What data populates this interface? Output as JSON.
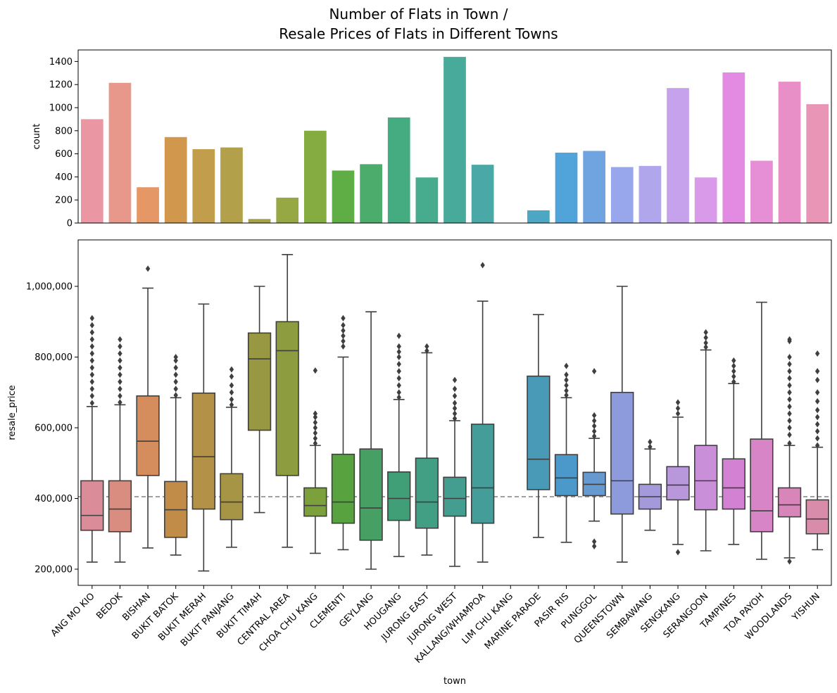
{
  "chart_data": [
    {
      "type": "bar",
      "title_lines": [
        "Number of Flats in Town /",
        "Resale Prices of Flats in Different Towns"
      ],
      "categories": [
        "ANG MO KIO",
        "BEDOK",
        "BISHAN",
        "BUKIT BATOK",
        "BUKIT MERAH",
        "BUKIT PANJANG",
        "BUKIT TIMAH",
        "CENTRAL AREA",
        "CHOA CHU KANG",
        "CLEMENTI",
        "GEYLANG",
        "HOUGANG",
        "JURONG EAST",
        "JURONG WEST",
        "KALLANG/WHAMPOA",
        "LIM CHU KANG",
        "MARINE PARADE",
        "PASIR RIS",
        "PUNGGOL",
        "QUEENSTOWN",
        "SEMBAWANG",
        "SENGKANG",
        "SERANGOON",
        "TAMPINES",
        "TOA PAYOH",
        "WOODLANDS",
        "YISHUN"
      ],
      "values": [
        900,
        1215,
        310,
        745,
        640,
        655,
        35,
        220,
        800,
        455,
        510,
        915,
        395,
        1440,
        505,
        0,
        110,
        610,
        625,
        485,
        495,
        1170,
        395,
        1305,
        540,
        1225,
        1030
      ],
      "colors": [
        "#ea96a3",
        "#e8988a",
        "#e59865",
        "#d0974d",
        "#c19d4c",
        "#b3a04a",
        "#a5a347",
        "#96a843",
        "#84ac41",
        "#5fae45",
        "#4bac6b",
        "#45ab80",
        "#47ab8e",
        "#48aa9a",
        "#4aa9a6",
        "#4ba8b3",
        "#4ea6c5",
        "#50a4d9",
        "#6fa4e1",
        "#98a6eb",
        "#b0a6ec",
        "#c6a2ec",
        "#d99ae9",
        "#e38be2",
        "#e78fd6",
        "#e88fc8",
        "#e996b6"
      ],
      "xlabel": "",
      "ylabel": "count",
      "ylim": [
        0,
        1500
      ],
      "yticks": [
        "0",
        "200",
        "400",
        "600",
        "800",
        "1000",
        "1200",
        "1400"
      ]
    },
    {
      "type": "box",
      "categories": [
        "ANG MO KIO",
        "BEDOK",
        "BISHAN",
        "BUKIT BATOK",
        "BUKIT MERAH",
        "BUKIT PANJANG",
        "BUKIT TIMAH",
        "CENTRAL AREA",
        "CHOA CHU KANG",
        "CLEMENTI",
        "GEYLANG",
        "HOUGANG",
        "JURONG EAST",
        "JURONG WEST",
        "KALLANG/WHAMPOA",
        "LIM CHU KANG",
        "MARINE PARADE",
        "PASIR RIS",
        "PUNGGOL",
        "QUEENSTOWN",
        "SEMBAWANG",
        "SENGKANG",
        "SERANGOON",
        "TAMPINES",
        "TOA PAYOH",
        "WOODLANDS",
        "YISHUN"
      ],
      "boxes": [
        {
          "wmin": 220000,
          "q1": 310000,
          "med": 352000,
          "q3": 450000,
          "wmax": 660000,
          "fliers": [
            670000,
            690000,
            710000,
            730000,
            750000,
            770000,
            790000,
            810000,
            830000,
            850000,
            870000,
            890000,
            910000
          ]
        },
        {
          "wmin": 220000,
          "q1": 306000,
          "med": 370000,
          "q3": 450000,
          "wmax": 665000,
          "fliers": [
            672000,
            690000,
            710000,
            730000,
            750000,
            770000,
            790000,
            810000,
            830000,
            850000
          ]
        },
        {
          "wmin": 260000,
          "q1": 465000,
          "med": 562000,
          "q3": 690000,
          "wmax": 995000,
          "fliers": [
            1050000
          ]
        },
        {
          "wmin": 240000,
          "q1": 290000,
          "med": 368000,
          "q3": 448000,
          "wmax": 685000,
          "fliers": [
            692000,
            710000,
            730000,
            750000,
            770000,
            790000,
            800000
          ]
        },
        {
          "wmin": 195000,
          "q1": 370000,
          "med": 518000,
          "q3": 698000,
          "wmax": 950000,
          "fliers": []
        },
        {
          "wmin": 262000,
          "q1": 340000,
          "med": 390000,
          "q3": 470000,
          "wmax": 658000,
          "fliers": [
            665000,
            680000,
            700000,
            720000,
            745000,
            765000
          ]
        },
        {
          "wmin": 360000,
          "q1": 593000,
          "med": 795000,
          "q3": 868000,
          "wmax": 1000000,
          "fliers": []
        },
        {
          "wmin": 262000,
          "q1": 465000,
          "med": 818000,
          "q3": 900000,
          "wmax": 1090000,
          "fliers": []
        },
        {
          "wmin": 245000,
          "q1": 350000,
          "med": 380000,
          "q3": 430000,
          "wmax": 550000,
          "fliers": [
            556000,
            570000,
            585000,
            600000,
            615000,
            630000,
            640000,
            762000
          ]
        },
        {
          "wmin": 255000,
          "q1": 330000,
          "med": 390000,
          "q3": 525000,
          "wmax": 800000,
          "fliers": [
            830000,
            845000,
            860000,
            875000,
            890000,
            910000
          ]
        },
        {
          "wmin": 200000,
          "q1": 282000,
          "med": 373000,
          "q3": 540000,
          "wmax": 928000,
          "fliers": []
        },
        {
          "wmin": 236000,
          "q1": 338000,
          "med": 400000,
          "q3": 475000,
          "wmax": 680000,
          "fliers": [
            686000,
            700000,
            720000,
            740000,
            760000,
            780000,
            800000,
            815000,
            830000,
            860000
          ]
        },
        {
          "wmin": 240000,
          "q1": 316000,
          "med": 390000,
          "q3": 514000,
          "wmax": 812000,
          "fliers": [
            818000,
            830000
          ]
        },
        {
          "wmin": 208000,
          "q1": 350000,
          "med": 400000,
          "q3": 460000,
          "wmax": 620000,
          "fliers": [
            626000,
            640000,
            655000,
            670000,
            690000,
            710000,
            735000
          ]
        },
        {
          "wmin": 220000,
          "q1": 330000,
          "med": 430000,
          "q3": 610000,
          "wmax": 958000,
          "fliers": [
            1060000
          ]
        },
        {
          "wmin": null,
          "q1": null,
          "med": null,
          "q3": null,
          "wmax": null,
          "fliers": []
        },
        {
          "wmin": 290000,
          "q1": 425000,
          "med": 511000,
          "q3": 746000,
          "wmax": 920000,
          "fliers": []
        },
        {
          "wmin": 276000,
          "q1": 408000,
          "med": 458000,
          "q3": 524000,
          "wmax": 685000,
          "fliers": [
            692000,
            705000,
            720000,
            735000,
            750000,
            775000
          ]
        },
        {
          "wmin": 336000,
          "q1": 408000,
          "med": 440000,
          "q3": 474000,
          "wmax": 570000,
          "fliers": [
            576000,
            590000,
            605000,
            620000,
            635000,
            760000,
            265000,
            278000
          ]
        },
        {
          "wmin": 220000,
          "q1": 356000,
          "med": 450000,
          "q3": 700000,
          "wmax": 1000000,
          "fliers": []
        },
        {
          "wmin": 310000,
          "q1": 370000,
          "med": 405000,
          "q3": 440000,
          "wmax": 540000,
          "fliers": [
            546000,
            560000
          ]
        },
        {
          "wmin": 270000,
          "q1": 396000,
          "med": 438000,
          "q3": 490000,
          "wmax": 630000,
          "fliers": [
            640000,
            655000,
            672000,
            248000
          ]
        },
        {
          "wmin": 252000,
          "q1": 368000,
          "med": 450000,
          "q3": 550000,
          "wmax": 820000,
          "fliers": [
            828000,
            840000,
            855000,
            870000
          ]
        },
        {
          "wmin": 270000,
          "q1": 370000,
          "med": 430000,
          "q3": 512000,
          "wmax": 725000,
          "fliers": [
            730000,
            745000,
            760000,
            775000,
            790000
          ]
        },
        {
          "wmin": 228000,
          "q1": 306000,
          "med": 365000,
          "q3": 568000,
          "wmax": 955000,
          "fliers": []
        },
        {
          "wmin": 232000,
          "q1": 348000,
          "med": 382000,
          "q3": 430000,
          "wmax": 550000,
          "fliers": [
            222000,
            556000,
            580000,
            600000,
            620000,
            640000,
            660000,
            680000,
            700000,
            720000,
            740000,
            760000,
            780000,
            800000,
            845000,
            850000
          ]
        },
        {
          "wmin": 255000,
          "q1": 300000,
          "med": 342000,
          "q3": 396000,
          "wmax": 545000,
          "fliers": [
            550000,
            570000,
            590000,
            610000,
            630000,
            650000,
            675000,
            700000,
            735000,
            760000,
            810000
          ]
        }
      ],
      "mean_line": 405000,
      "xlabel": "town",
      "ylabel": "resale_price",
      "ylim": [
        150000,
        1135000
      ],
      "yticks": [
        "200,000",
        "400,000",
        "600,000",
        "800,000",
        "1,000,000"
      ]
    }
  ]
}
